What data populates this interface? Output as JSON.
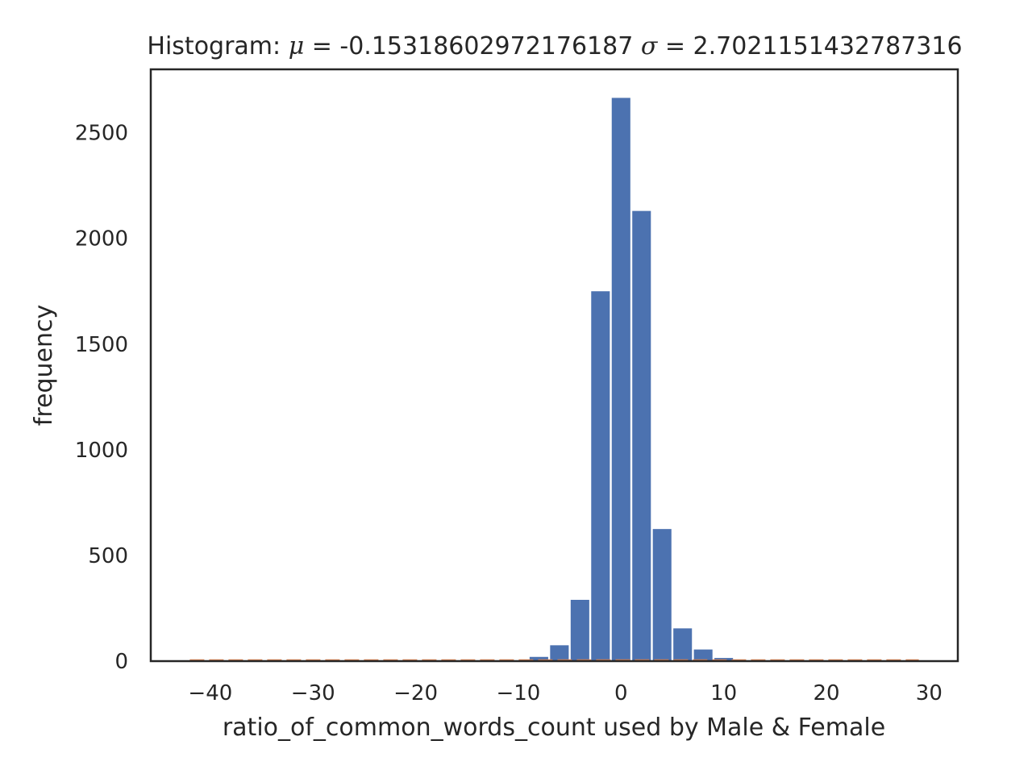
{
  "chart_data": {
    "type": "bar",
    "title": {
      "prefix": "Histogram: ",
      "mu_symbol": "μ",
      "mu_value": " = -0.15318602972176187 ",
      "sigma_symbol": "σ",
      "sigma_value": " = 2.7021151432787316"
    },
    "xlabel": "ratio_of_common_words_count used by Male & Female",
    "ylabel": "frequency",
    "xlim": [
      -45.8,
      32.8
    ],
    "ylim": [
      0,
      2800
    ],
    "xticks": [
      -40,
      -30,
      -20,
      -10,
      0,
      10,
      20,
      30
    ],
    "xtick_labels": [
      "−40",
      "−30",
      "−20",
      "−10",
      "0",
      "10",
      "20",
      "30"
    ],
    "yticks": [
      0,
      500,
      1000,
      1500,
      2000,
      2500
    ],
    "ytick_labels": [
      "0",
      "500",
      "1000",
      "1500",
      "2000",
      "2500"
    ],
    "bin_width": 2,
    "bins": [
      {
        "x0": -9,
        "x1": -7,
        "value": 20
      },
      {
        "x0": -7,
        "x1": -5,
        "value": 75
      },
      {
        "x0": -5,
        "x1": -3,
        "value": 290
      },
      {
        "x0": -3,
        "x1": -1,
        "value": 1750
      },
      {
        "x0": -1,
        "x1": 1,
        "value": 2665
      },
      {
        "x0": 1,
        "x1": 3,
        "value": 2130
      },
      {
        "x0": 3,
        "x1": 5,
        "value": 625
      },
      {
        "x0": 5,
        "x1": 7,
        "value": 155
      },
      {
        "x0": 7,
        "x1": 9,
        "value": 55
      },
      {
        "x0": 9,
        "x1": 11,
        "value": 15
      }
    ],
    "overlay_line": {
      "y": 0,
      "x_range": [
        -42,
        29
      ],
      "color": "#dd8452"
    },
    "bar_color": "#4c72b0",
    "grid": false,
    "legend": "none"
  }
}
